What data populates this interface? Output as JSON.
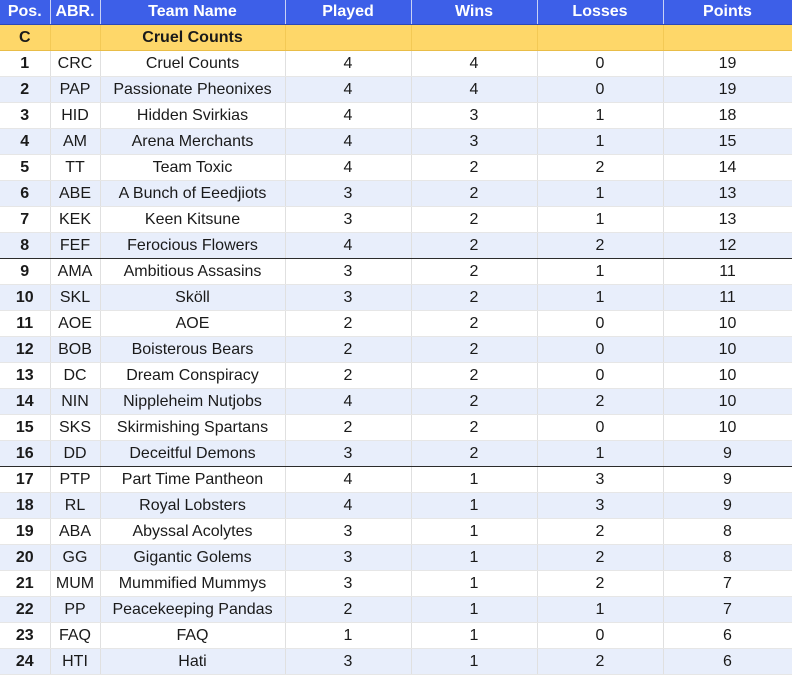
{
  "columns": {
    "pos": "Pos.",
    "abr": "ABR.",
    "team": "Team Name",
    "played": "Played",
    "wins": "Wins",
    "losses": "Losses",
    "points": "Points"
  },
  "group": {
    "code": "C",
    "name": "Cruel Counts"
  },
  "colors": {
    "header_bg": "#3d5fe8",
    "group_bg": "#fed769",
    "row_alt_bg": "#e8eefb",
    "divider": "#2b2b2b"
  },
  "rows": [
    {
      "pos": "1",
      "abr": "CRC",
      "team": "Cruel Counts",
      "played": "4",
      "wins": "4",
      "losses": "0",
      "points": "19"
    },
    {
      "pos": "2",
      "abr": "PAP",
      "team": "Passionate Pheonixes",
      "played": "4",
      "wins": "4",
      "losses": "0",
      "points": "19"
    },
    {
      "pos": "3",
      "abr": "HID",
      "team": "Hidden Svirkias",
      "played": "4",
      "wins": "3",
      "losses": "1",
      "points": "18"
    },
    {
      "pos": "4",
      "abr": "AM",
      "team": "Arena Merchants",
      "played": "4",
      "wins": "3",
      "losses": "1",
      "points": "15"
    },
    {
      "pos": "5",
      "abr": "TT",
      "team": "Team Toxic",
      "played": "4",
      "wins": "2",
      "losses": "2",
      "points": "14"
    },
    {
      "pos": "6",
      "abr": "ABE",
      "team": "A Bunch of Eeedjiots",
      "played": "3",
      "wins": "2",
      "losses": "1",
      "points": "13"
    },
    {
      "pos": "7",
      "abr": "KEK",
      "team": "Keen Kitsune",
      "played": "3",
      "wins": "2",
      "losses": "1",
      "points": "13"
    },
    {
      "pos": "8",
      "abr": "FEF",
      "team": "Ferocious Flowers",
      "played": "4",
      "wins": "2",
      "losses": "2",
      "points": "12"
    },
    {
      "pos": "9",
      "abr": "AMA",
      "team": "Ambitious Assasins",
      "played": "3",
      "wins": "2",
      "losses": "1",
      "points": "11"
    },
    {
      "pos": "10",
      "abr": "SKL",
      "team": "Sköll",
      "played": "3",
      "wins": "2",
      "losses": "1",
      "points": "11"
    },
    {
      "pos": "11",
      "abr": "AOE",
      "team": "AOE",
      "played": "2",
      "wins": "2",
      "losses": "0",
      "points": "10"
    },
    {
      "pos": "12",
      "abr": "BOB",
      "team": "Boisterous Bears",
      "played": "2",
      "wins": "2",
      "losses": "0",
      "points": "10"
    },
    {
      "pos": "13",
      "abr": "DC",
      "team": "Dream Conspiracy",
      "played": "2",
      "wins": "2",
      "losses": "0",
      "points": "10"
    },
    {
      "pos": "14",
      "abr": "NIN",
      "team": "Nippleheim Nutjobs",
      "played": "4",
      "wins": "2",
      "losses": "2",
      "points": "10"
    },
    {
      "pos": "15",
      "abr": "SKS",
      "team": "Skirmishing Spartans",
      "played": "2",
      "wins": "2",
      "losses": "0",
      "points": "10"
    },
    {
      "pos": "16",
      "abr": "DD",
      "team": "Deceitful Demons",
      "played": "3",
      "wins": "2",
      "losses": "1",
      "points": "9"
    },
    {
      "pos": "17",
      "abr": "PTP",
      "team": "Part Time Pantheon",
      "played": "4",
      "wins": "1",
      "losses": "3",
      "points": "9"
    },
    {
      "pos": "18",
      "abr": "RL",
      "team": "Royal Lobsters",
      "played": "4",
      "wins": "1",
      "losses": "3",
      "points": "9"
    },
    {
      "pos": "19",
      "abr": "ABA",
      "team": "Abyssal Acolytes",
      "played": "3",
      "wins": "1",
      "losses": "2",
      "points": "8"
    },
    {
      "pos": "20",
      "abr": "GG",
      "team": "Gigantic Golems",
      "played": "3",
      "wins": "1",
      "losses": "2",
      "points": "8"
    },
    {
      "pos": "21",
      "abr": "MUM",
      "team": "Mummified Mummys",
      "played": "3",
      "wins": "1",
      "losses": "2",
      "points": "7"
    },
    {
      "pos": "22",
      "abr": "PP",
      "team": "Peacekeeping Pandas",
      "played": "2",
      "wins": "1",
      "losses": "1",
      "points": "7"
    },
    {
      "pos": "23",
      "abr": "FAQ",
      "team": "FAQ",
      "played": "1",
      "wins": "1",
      "losses": "0",
      "points": "6"
    },
    {
      "pos": "24",
      "abr": "HTI",
      "team": "Hati",
      "played": "3",
      "wins": "1",
      "losses": "2",
      "points": "6"
    }
  ]
}
